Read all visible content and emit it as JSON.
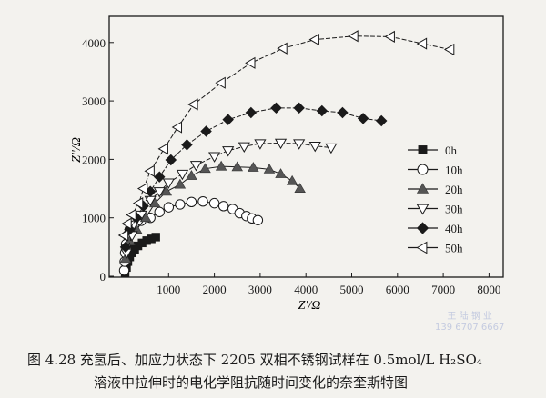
{
  "chart_data": {
    "type": "scatter",
    "title": "",
    "xlabel": "Z'/Ω",
    "ylabel": "Z''/Ω",
    "xlim": [
      0,
      8000
    ],
    "ylim": [
      0,
      4500
    ],
    "xticks": [
      "1000",
      "2000",
      "3000",
      "4000",
      "5000",
      "6000",
      "7000",
      "8000"
    ],
    "xtick_values": [
      1000,
      2000,
      3000,
      4000,
      5000,
      6000,
      7000,
      8000
    ],
    "yticks": [
      "0",
      "1000",
      "2000",
      "3000",
      "4000"
    ],
    "ytick_values": [
      0,
      1000,
      2000,
      3000,
      4000
    ],
    "grid": false,
    "legend_position": "right",
    "series": [
      {
        "name": "0h",
        "marker": "square-filled",
        "x": [
          50,
          80,
          110,
          150,
          200,
          260,
          330,
          420,
          520,
          620,
          720
        ],
        "y": [
          50,
          150,
          250,
          330,
          400,
          460,
          520,
          570,
          610,
          640,
          670
        ]
      },
      {
        "name": "10h",
        "marker": "circle-open",
        "x": [
          30,
          40,
          50,
          70,
          100,
          150,
          250,
          400,
          600,
          800,
          1000,
          1250,
          1500,
          1750,
          2000,
          2200,
          2400,
          2550,
          2700,
          2820,
          2950
        ],
        "y": [
          100,
          250,
          400,
          550,
          700,
          800,
          870,
          950,
          1000,
          1100,
          1180,
          1230,
          1270,
          1280,
          1250,
          1200,
          1150,
          1080,
          1030,
          990,
          960
        ]
      },
      {
        "name": "20h",
        "marker": "triangle-up-filled",
        "x": [
          60,
          150,
          300,
          500,
          700,
          950,
          1250,
          1500,
          1800,
          2150,
          2500,
          2850,
          3200,
          3450,
          3700,
          3870
        ],
        "y": [
          300,
          600,
          800,
          1000,
          1250,
          1450,
          1570,
          1720,
          1840,
          1880,
          1870,
          1860,
          1830,
          1750,
          1630,
          1500
        ]
      },
      {
        "name": "30h",
        "marker": "triangle-down-open",
        "x": [
          80,
          200,
          400,
          600,
          800,
          1000,
          1300,
          1600,
          2000,
          2300,
          2650,
          3000,
          3450,
          3850,
          4200,
          4550
        ],
        "y": [
          400,
          700,
          1050,
          1300,
          1450,
          1600,
          1750,
          1900,
          2050,
          2150,
          2220,
          2270,
          2280,
          2270,
          2230,
          2200
        ]
      },
      {
        "name": "40h",
        "marker": "diamond-filled",
        "x": [
          60,
          150,
          300,
          450,
          600,
          800,
          1050,
          1400,
          1820,
          2300,
          2800,
          3350,
          3850,
          4350,
          4800,
          5250,
          5650
        ],
        "y": [
          500,
          800,
          1000,
          1200,
          1450,
          1700,
          1990,
          2250,
          2480,
          2680,
          2800,
          2880,
          2880,
          2830,
          2800,
          2700,
          2660
        ]
      },
      {
        "name": "50h",
        "marker": "triangle-left-open",
        "x": [
          30,
          100,
          200,
          350,
          450,
          600,
          900,
          1200,
          1550,
          2150,
          2800,
          3500,
          4200,
          5050,
          5850,
          6550,
          7150
        ],
        "y": [
          700,
          900,
          1050,
          1250,
          1500,
          1800,
          2180,
          2550,
          2940,
          3310,
          3650,
          3900,
          4050,
          4110,
          4100,
          3980,
          3880
        ]
      }
    ]
  },
  "caption": {
    "line1": "图 4.28   充氢后、加应力状态下 2205 双相不锈钢试样在 0.5mol/L H₂SO₄",
    "line2": "溶液中拉伸时的电化学阻抗随时间变化的奈奎斯特图"
  },
  "watermark": {
    "line1": "王 陆 钢 业",
    "line2": "139 6707 6667"
  },
  "colors": {
    "ink": "#1a1a1a",
    "gray_fill": "#555555",
    "background": "#f3f2ee"
  }
}
